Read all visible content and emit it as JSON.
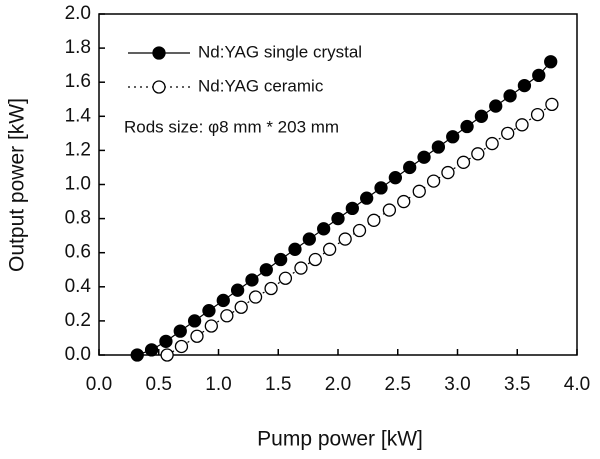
{
  "chart_data": {
    "type": "line",
    "xlabel": "Pump power [kW]",
    "ylabel": "Output power [kW]",
    "annotation": "Rods size: φ8 mm * 203 mm",
    "xlim": [
      0,
      4
    ],
    "ylim": [
      0,
      2
    ],
    "xticks": [
      {
        "value": 0,
        "label": "0.0"
      },
      0.5,
      {
        "value": 1,
        "label": "1.0"
      },
      1.5,
      {
        "value": 2,
        "label": "2.0"
      },
      2.5,
      {
        "value": 3,
        "label": "3.0"
      },
      3.5,
      {
        "value": 4,
        "label": "4.0"
      }
    ],
    "yticks": [
      {
        "value": 0,
        "label": "0.0"
      },
      0.2,
      0.4,
      0.6,
      0.8,
      {
        "value": 1,
        "label": "1.0"
      },
      1.2,
      1.4,
      1.6,
      1.8,
      {
        "value": 2,
        "label": "2.0"
      }
    ],
    "legend": "upper left",
    "series": [
      {
        "name": "Nd:YAG single crystal",
        "color": "#000000",
        "marker": "filled",
        "linestyle": "solid",
        "x": [
          0.32,
          0.44,
          0.56,
          0.68,
          0.8,
          0.92,
          1.04,
          1.16,
          1.28,
          1.4,
          1.52,
          1.64,
          1.76,
          1.88,
          2.0,
          2.12,
          2.24,
          2.36,
          2.48,
          2.6,
          2.72,
          2.84,
          2.96,
          3.08,
          3.2,
          3.32,
          3.44,
          3.56,
          3.68,
          3.78
        ],
        "values": [
          0.0,
          0.03,
          0.08,
          0.14,
          0.2,
          0.26,
          0.32,
          0.38,
          0.44,
          0.5,
          0.56,
          0.62,
          0.68,
          0.74,
          0.8,
          0.86,
          0.92,
          0.98,
          1.04,
          1.1,
          1.16,
          1.22,
          1.28,
          1.34,
          1.4,
          1.46,
          1.52,
          1.58,
          1.64,
          1.72
        ]
      },
      {
        "name": "Nd:YAG ceramic",
        "color": "#000000",
        "marker": "open",
        "linestyle": "dotted",
        "x": [
          0.57,
          0.69,
          0.82,
          0.94,
          1.07,
          1.19,
          1.31,
          1.44,
          1.56,
          1.69,
          1.81,
          1.93,
          2.06,
          2.18,
          2.3,
          2.43,
          2.55,
          2.68,
          2.8,
          2.92,
          3.05,
          3.17,
          3.29,
          3.42,
          3.54,
          3.67,
          3.79
        ],
        "values": [
          0.0,
          0.05,
          0.11,
          0.17,
          0.23,
          0.28,
          0.34,
          0.39,
          0.45,
          0.51,
          0.56,
          0.62,
          0.68,
          0.73,
          0.79,
          0.85,
          0.9,
          0.96,
          1.02,
          1.07,
          1.13,
          1.18,
          1.24,
          1.3,
          1.35,
          1.41,
          1.47
        ]
      }
    ]
  }
}
